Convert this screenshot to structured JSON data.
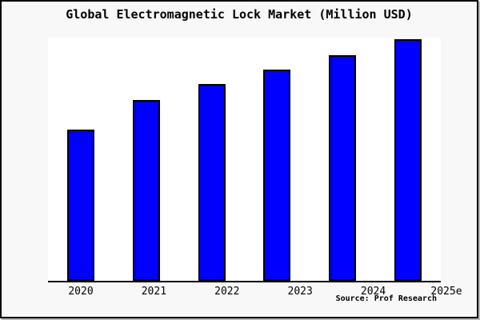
{
  "window": {
    "title": "Global Electromagnetic Lock Market (Million USD)"
  },
  "chart_data": {
    "type": "bar",
    "title": "Global Electromagnetic Lock Market (Million USD)",
    "unit": "Million USD",
    "categories": [
      "2020",
      "2021",
      "2022",
      "2023",
      "2024",
      "2025e"
    ],
    "series": [
      {
        "name": "Global Electromagnetic Lock Market",
        "values": [
          62.6,
          74.9,
          81.3,
          87.4,
          93.4,
          100
        ],
        "values_note": "relative size, % of 2025e bar; no y-axis scale shown in chart"
      }
    ],
    "xlabel": "",
    "ylabel": "",
    "y_axis_shown": false,
    "x_axis_line": true,
    "gridlines": false,
    "legend": false,
    "bar_color": "#0000ff",
    "bar_border_color": "#000000",
    "plot_bg": "#ffffff",
    "canvas_bg": "#f8f8f8",
    "frame_border_color": "#000000"
  },
  "footer": {
    "source_label": "Source: Prof Research"
  }
}
